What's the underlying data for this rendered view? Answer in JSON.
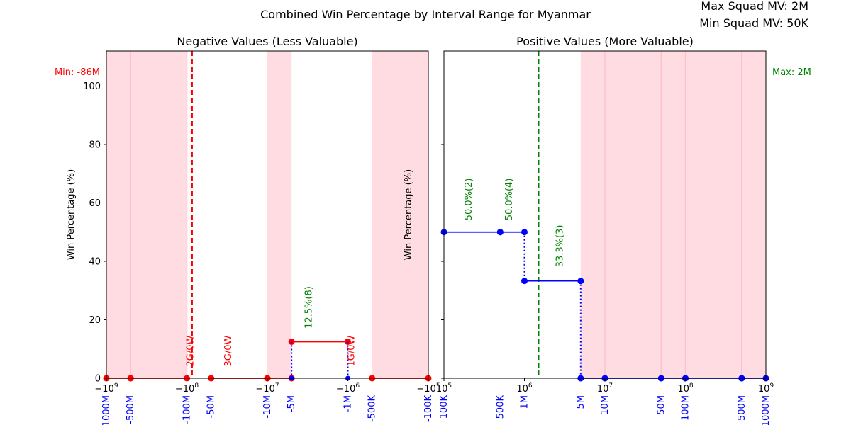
{
  "figure": {
    "title": "Combined Win Percentage by Interval Range for Myanmar",
    "max_label": "Max Squad MV: 2M",
    "min_label": "Min Squad MV: 50K"
  },
  "chart_data": [
    {
      "type": "line",
      "title": "Negative Values (Less Valuable)",
      "ylabel": "Win Percentage (%)",
      "xscale": "symlog",
      "xlim": [
        -1000000000,
        -100000
      ],
      "ylim": [
        0,
        112
      ],
      "yticks": [
        0,
        20,
        40,
        60,
        80,
        100
      ],
      "grid": false,
      "xticks": [
        {
          "value": -1000000000,
          "label": "−10^9"
        },
        {
          "value": -100000000,
          "label": "−10^8"
        },
        {
          "value": -10000000,
          "label": "−10^7"
        },
        {
          "value": -1000000,
          "label": "−10^6"
        },
        {
          "value": -100000,
          "label": "−10^5"
        }
      ],
      "interval_labels": [
        {
          "value": -1000000000,
          "label": "-1000M"
        },
        {
          "value": -500000000,
          "label": "-500M"
        },
        {
          "value": -100000000,
          "label": "-100M"
        },
        {
          "value": -50000000,
          "label": "-50M"
        },
        {
          "value": -10000000,
          "label": "-10M"
        },
        {
          "value": -5000000,
          "label": "-5M"
        },
        {
          "value": -1000000,
          "label": "-1M"
        },
        {
          "value": -500000,
          "label": "-500K"
        },
        {
          "value": -100000,
          "label": "-100K"
        }
      ],
      "shaded_ranges": [
        [
          -1000000000,
          -500000000
        ],
        [
          -500000000,
          -100000000
        ],
        [
          -10000000,
          -5000000
        ],
        [
          -500000,
          -100000
        ]
      ],
      "boundary_lines": [
        -500000000,
        -100000000
      ],
      "segments": [
        {
          "x": [
            -1000000000,
            -500000000
          ],
          "y": 0
        },
        {
          "x": [
            -500000000,
            -100000000
          ],
          "y": 0
        },
        {
          "x": [
            -50000000,
            -10000000
          ],
          "y": 0
        },
        {
          "x": [
            -10000000,
            -5000000
          ],
          "y": 0
        },
        {
          "x": [
            -5000000,
            -1000000
          ],
          "y": 12.5
        },
        {
          "x": [
            -500000,
            -100000
          ],
          "y": 0
        }
      ],
      "drops": [
        {
          "x": -5000000,
          "from": 12.5,
          "to": 0
        },
        {
          "x": -1000000,
          "from": 12.5,
          "to": 0
        }
      ],
      "drop_points": [
        -5000000,
        -1000000
      ],
      "reference_line": {
        "x": -86000000,
        "label": "Min: -86M",
        "color": "#ff0000"
      },
      "annotations": [
        {
          "x": -83000000,
          "y": 4,
          "text": "2G/0W",
          "color": "#ff0000"
        },
        {
          "x": -28000000,
          "y": 4,
          "text": "3G/0W",
          "color": "#ff0000"
        },
        {
          "x": -2800000,
          "y": 17,
          "text": "12.5%(8)",
          "color": "#008000"
        },
        {
          "x": -830000,
          "y": 4,
          "text": "1G/0W",
          "color": "#ff0000"
        }
      ],
      "colors": {
        "line": "#ff0000",
        "drop": "#0000ff",
        "ticklabel": "#0000ff",
        "shade": "#ffc0cb"
      }
    },
    {
      "type": "line",
      "title": "Positive Values (More Valuable)",
      "ylabel": "Win Percentage (%)",
      "xscale": "log",
      "xlim": [
        100000,
        1000000000
      ],
      "ylim": [
        0,
        112
      ],
      "yticks": [
        0,
        20,
        40,
        60,
        80,
        100
      ],
      "grid": false,
      "xticks": [
        {
          "value": 100000,
          "label": "10^5"
        },
        {
          "value": 1000000,
          "label": "10^6"
        },
        {
          "value": 10000000,
          "label": "10^7"
        },
        {
          "value": 100000000,
          "label": "10^8"
        },
        {
          "value": 1000000000,
          "label": "10^9"
        }
      ],
      "interval_labels": [
        {
          "value": 100000,
          "label": "100K"
        },
        {
          "value": 500000,
          "label": "500K"
        },
        {
          "value": 1000000,
          "label": "1M"
        },
        {
          "value": 5000000,
          "label": "5M"
        },
        {
          "value": 10000000,
          "label": "10M"
        },
        {
          "value": 50000000,
          "label": "50M"
        },
        {
          "value": 100000000,
          "label": "100M"
        },
        {
          "value": 500000000,
          "label": "500M"
        },
        {
          "value": 1000000000,
          "label": "1000M"
        }
      ],
      "shaded_ranges": [
        [
          5000000,
          10000000
        ],
        [
          10000000,
          50000000
        ],
        [
          50000000,
          100000000
        ],
        [
          100000000,
          500000000
        ],
        [
          500000000,
          1000000000
        ]
      ],
      "boundary_lines": [
        10000000,
        50000000,
        100000000,
        500000000
      ],
      "segments": [
        {
          "x": [
            100000,
            500000
          ],
          "y": 50
        },
        {
          "x": [
            500000,
            1000000
          ],
          "y": 50
        },
        {
          "x": [
            1000000,
            5000000
          ],
          "y": 33.3
        },
        {
          "x": [
            5000000,
            10000000
          ],
          "y": 0
        },
        {
          "x": [
            10000000,
            50000000
          ],
          "y": 0
        },
        {
          "x": [
            50000000,
            100000000
          ],
          "y": 0
        },
        {
          "x": [
            100000000,
            500000000
          ],
          "y": 0
        },
        {
          "x": [
            500000000,
            1000000000
          ],
          "y": 0
        }
      ],
      "drops": [
        {
          "x": 1000000,
          "from": 50,
          "to": 33.3
        },
        {
          "x": 5000000,
          "from": 33.3,
          "to": 0
        }
      ],
      "drop_points": [],
      "reference_line": {
        "x": 1500000,
        "label": "Max: 2M",
        "color": "#008000"
      },
      "annotations": [
        {
          "x": 220000,
          "y": 54,
          "text": "50.0%(2)",
          "color": "#008000"
        },
        {
          "x": 700000,
          "y": 54,
          "text": "50.0%(4)",
          "color": "#008000"
        },
        {
          "x": 3000000,
          "y": 38,
          "text": "33.3%(3)",
          "color": "#008000"
        }
      ],
      "colors": {
        "line": "#0000ff",
        "drop": "#0000ff",
        "ticklabel": "#0000ff",
        "shade": "#ffc0cb"
      }
    }
  ]
}
